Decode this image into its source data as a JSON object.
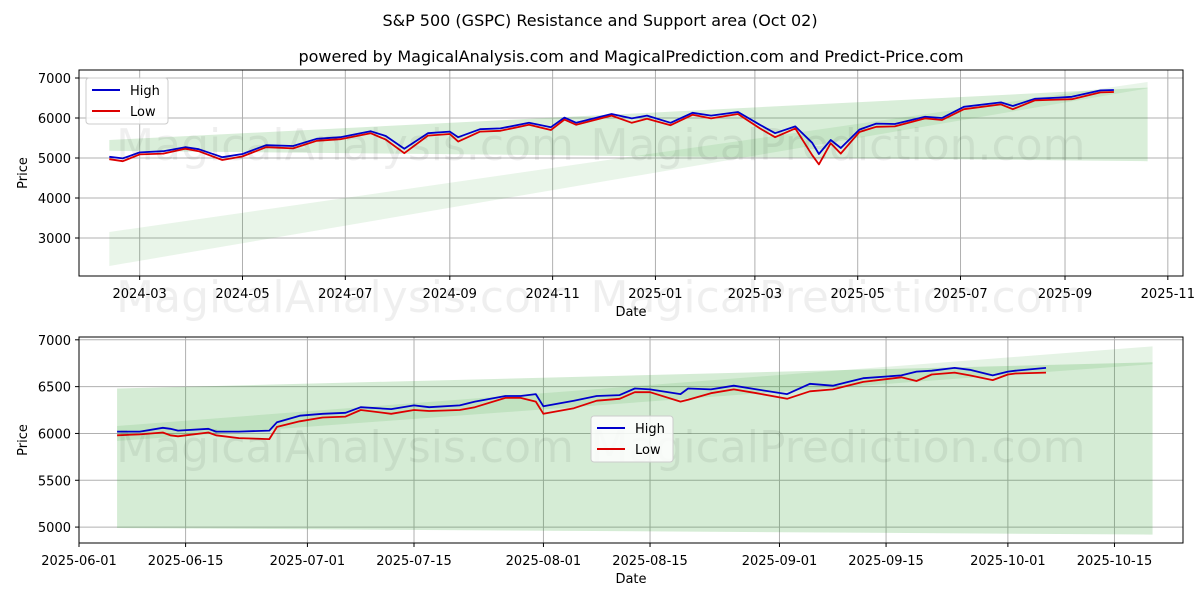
{
  "title": "S&P 500 (GSPC) Resistance and Support area (Oct 02)",
  "subtitle": "powered by MagicalAnalysis.com and MagicalPrediction.com and Predict-Price.com",
  "watermarks": [
    "MagicalAnalysis.com",
    "MagicalPrediction.com"
  ],
  "colors": {
    "high": "#0000cc",
    "low": "#dd0000",
    "band": "#2ca02c"
  },
  "chart_data": [
    {
      "type": "line",
      "title": "",
      "xlabel": "Date",
      "ylabel": "Price",
      "x_range": [
        "2024-01-25",
        "2025-11-10"
      ],
      "ylim": [
        2050,
        7200
      ],
      "yticks": [
        3000,
        4000,
        5000,
        6000,
        7000
      ],
      "xticks": [
        {
          "date": "2024-03-01",
          "label": "2024-03"
        },
        {
          "date": "2024-05-01",
          "label": "2024-05"
        },
        {
          "date": "2024-07-01",
          "label": "2024-07"
        },
        {
          "date": "2024-09-01",
          "label": "2024-09"
        },
        {
          "date": "2024-11-01",
          "label": "2024-11"
        },
        {
          "date": "2025-01-01",
          "label": "2025-01"
        },
        {
          "date": "2025-03-01",
          "label": "2025-03"
        },
        {
          "date": "2025-05-01",
          "label": "2025-05"
        },
        {
          "date": "2025-07-01",
          "label": "2025-07"
        },
        {
          "date": "2025-09-01",
          "label": "2025-09"
        },
        {
          "date": "2025-11-01",
          "label": "2025-11"
        }
      ],
      "grid": true,
      "legend": "top-left",
      "series": [
        {
          "name": "High",
          "points": [
            [
              "2024-02-12",
              5030
            ],
            [
              "2024-02-20",
              4990
            ],
            [
              "2024-03-01",
              5140
            ],
            [
              "2024-03-15",
              5170
            ],
            [
              "2024-03-28",
              5270
            ],
            [
              "2024-04-05",
              5220
            ],
            [
              "2024-04-19",
              5020
            ],
            [
              "2024-05-01",
              5100
            ],
            [
              "2024-05-15",
              5320
            ],
            [
              "2024-05-31",
              5300
            ],
            [
              "2024-06-14",
              5480
            ],
            [
              "2024-06-28",
              5520
            ],
            [
              "2024-07-16",
              5670
            ],
            [
              "2024-07-25",
              5550
            ],
            [
              "2024-08-05",
              5230
            ],
            [
              "2024-08-19",
              5620
            ],
            [
              "2024-09-01",
              5660
            ],
            [
              "2024-09-06",
              5520
            ],
            [
              "2024-09-19",
              5720
            ],
            [
              "2024-10-01",
              5740
            ],
            [
              "2024-10-18",
              5880
            ],
            [
              "2024-10-31",
              5770
            ],
            [
              "2024-11-08",
              6010
            ],
            [
              "2024-11-15",
              5880
            ],
            [
              "2024-12-06",
              6100
            ],
            [
              "2024-12-18",
              5990
            ],
            [
              "2024-12-27",
              6060
            ],
            [
              "2025-01-10",
              5880
            ],
            [
              "2025-01-23",
              6130
            ],
            [
              "2025-02-03",
              6060
            ],
            [
              "2025-02-19",
              6150
            ],
            [
              "2025-03-04",
              5830
            ],
            [
              "2025-03-13",
              5620
            ],
            [
              "2025-03-25",
              5790
            ],
            [
              "2025-04-04",
              5380
            ],
            [
              "2025-04-08",
              5100
            ],
            [
              "2025-04-15",
              5450
            ],
            [
              "2025-04-21",
              5250
            ],
            [
              "2025-05-02",
              5710
            ],
            [
              "2025-05-12",
              5860
            ],
            [
              "2025-05-23",
              5850
            ],
            [
              "2025-06-10",
              6030
            ],
            [
              "2025-06-20",
              6000
            ],
            [
              "2025-07-03",
              6280
            ],
            [
              "2025-07-25",
              6390
            ],
            [
              "2025-08-01",
              6300
            ],
            [
              "2025-08-14",
              6480
            ],
            [
              "2025-08-28",
              6510
            ],
            [
              "2025-09-05",
              6530
            ],
            [
              "2025-09-22",
              6690
            ],
            [
              "2025-09-30",
              6700
            ]
          ]
        },
        {
          "name": "Low",
          "points": [
            [
              "2024-02-12",
              4970
            ],
            [
              "2024-02-20",
              4920
            ],
            [
              "2024-03-01",
              5090
            ],
            [
              "2024-03-15",
              5110
            ],
            [
              "2024-03-28",
              5230
            ],
            [
              "2024-04-05",
              5170
            ],
            [
              "2024-04-19",
              4950
            ],
            [
              "2024-05-01",
              5040
            ],
            [
              "2024-05-15",
              5270
            ],
            [
              "2024-05-31",
              5240
            ],
            [
              "2024-06-14",
              5430
            ],
            [
              "2024-06-28",
              5470
            ],
            [
              "2024-07-16",
              5620
            ],
            [
              "2024-07-25",
              5460
            ],
            [
              "2024-08-05",
              5120
            ],
            [
              "2024-08-19",
              5560
            ],
            [
              "2024-09-01",
              5600
            ],
            [
              "2024-09-06",
              5410
            ],
            [
              "2024-09-19",
              5660
            ],
            [
              "2024-10-01",
              5680
            ],
            [
              "2024-10-18",
              5830
            ],
            [
              "2024-10-31",
              5700
            ],
            [
              "2024-11-08",
              5960
            ],
            [
              "2024-11-15",
              5830
            ],
            [
              "2024-12-06",
              6060
            ],
            [
              "2024-12-18",
              5880
            ],
            [
              "2024-12-27",
              5980
            ],
            [
              "2025-01-10",
              5820
            ],
            [
              "2025-01-23",
              6080
            ],
            [
              "2025-02-03",
              5990
            ],
            [
              "2025-02-19",
              6100
            ],
            [
              "2025-03-04",
              5740
            ],
            [
              "2025-03-13",
              5520
            ],
            [
              "2025-03-25",
              5740
            ],
            [
              "2025-04-04",
              5070
            ],
            [
              "2025-04-08",
              4840
            ],
            [
              "2025-04-15",
              5370
            ],
            [
              "2025-04-21",
              5110
            ],
            [
              "2025-05-02",
              5650
            ],
            [
              "2025-05-12",
              5780
            ],
            [
              "2025-05-23",
              5790
            ],
            [
              "2025-06-10",
              5990
            ],
            [
              "2025-06-20",
              5950
            ],
            [
              "2025-07-03",
              6220
            ],
            [
              "2025-07-25",
              6340
            ],
            [
              "2025-08-01",
              6220
            ],
            [
              "2025-08-14",
              6440
            ],
            [
              "2025-08-28",
              6460
            ],
            [
              "2025-09-05",
              6470
            ],
            [
              "2025-09-22",
              6640
            ],
            [
              "2025-09-30",
              6650
            ]
          ]
        }
      ],
      "bands": [
        {
          "name": "resistance-band",
          "start": "2024-02-12",
          "end": "2025-10-20",
          "lower": [
            5180,
            4920
          ],
          "upper": [
            5450,
            6760
          ],
          "opacity": 0.18
        },
        {
          "name": "support-band",
          "start": "2024-02-12",
          "end": "2025-10-20",
          "lower": [
            2300,
            6740
          ],
          "upper": [
            3150,
            6900
          ],
          "opacity": 0.1
        }
      ]
    },
    {
      "type": "line",
      "title": "",
      "xlabel": "Date",
      "ylabel": "Price",
      "x_range": [
        "2025-06-01",
        "2025-10-24"
      ],
      "ylim": [
        4830,
        7030
      ],
      "yticks": [
        5000,
        5500,
        6000,
        6500,
        7000
      ],
      "xticks": [
        {
          "date": "2025-06-01",
          "label": "2025-06-01"
        },
        {
          "date": "2025-06-15",
          "label": "2025-06-15"
        },
        {
          "date": "2025-07-01",
          "label": "2025-07-01"
        },
        {
          "date": "2025-07-15",
          "label": "2025-07-15"
        },
        {
          "date": "2025-08-01",
          "label": "2025-08-01"
        },
        {
          "date": "2025-08-15",
          "label": "2025-08-15"
        },
        {
          "date": "2025-09-01",
          "label": "2025-09-01"
        },
        {
          "date": "2025-09-15",
          "label": "2025-09-15"
        },
        {
          "date": "2025-10-01",
          "label": "2025-10-01"
        },
        {
          "date": "2025-10-15",
          "label": "2025-10-15"
        }
      ],
      "grid": true,
      "legend": "center",
      "series": [
        {
          "name": "High",
          "points": [
            [
              "2025-06-06",
              6020
            ],
            [
              "2025-06-09",
              6020
            ],
            [
              "2025-06-12",
              6060
            ],
            [
              "2025-06-13",
              6050
            ],
            [
              "2025-06-14",
              6030
            ],
            [
              "2025-06-18",
              6050
            ],
            [
              "2025-06-19",
              6020
            ],
            [
              "2025-06-22",
              6020
            ],
            [
              "2025-06-26",
              6030
            ],
            [
              "2025-06-27",
              6120
            ],
            [
              "2025-06-30",
              6190
            ],
            [
              "2025-07-03",
              6210
            ],
            [
              "2025-07-06",
              6220
            ],
            [
              "2025-07-08",
              6280
            ],
            [
              "2025-07-12",
              6260
            ],
            [
              "2025-07-15",
              6300
            ],
            [
              "2025-07-17",
              6280
            ],
            [
              "2025-07-21",
              6300
            ],
            [
              "2025-07-23",
              6340
            ],
            [
              "2025-07-27",
              6400
            ],
            [
              "2025-07-29",
              6400
            ],
            [
              "2025-07-31",
              6420
            ],
            [
              "2025-08-01",
              6290
            ],
            [
              "2025-08-05",
              6350
            ],
            [
              "2025-08-08",
              6400
            ],
            [
              "2025-08-11",
              6410
            ],
            [
              "2025-08-13",
              6480
            ],
            [
              "2025-08-15",
              6470
            ],
            [
              "2025-08-19",
              6420
            ],
            [
              "2025-08-20",
              6480
            ],
            [
              "2025-08-23",
              6470
            ],
            [
              "2025-08-26",
              6510
            ],
            [
              "2025-08-29",
              6470
            ],
            [
              "2025-09-02",
              6420
            ],
            [
              "2025-09-05",
              6530
            ],
            [
              "2025-09-08",
              6510
            ],
            [
              "2025-09-12",
              6590
            ],
            [
              "2025-09-17",
              6620
            ],
            [
              "2025-09-19",
              6660
            ],
            [
              "2025-09-21",
              6670
            ],
            [
              "2025-09-24",
              6700
            ],
            [
              "2025-09-26",
              6680
            ],
            [
              "2025-09-29",
              6620
            ],
            [
              "2025-10-01",
              6660
            ],
            [
              "2025-10-02",
              6670
            ],
            [
              "2025-10-06",
              6700
            ]
          ]
        },
        {
          "name": "Low",
          "points": [
            [
              "2025-06-06",
              5980
            ],
            [
              "2025-06-09",
              5990
            ],
            [
              "2025-06-12",
              6010
            ],
            [
              "2025-06-13",
              5980
            ],
            [
              "2025-06-14",
              5970
            ],
            [
              "2025-06-18",
              6010
            ],
            [
              "2025-06-19",
              5980
            ],
            [
              "2025-06-22",
              5950
            ],
            [
              "2025-06-26",
              5940
            ],
            [
              "2025-06-27",
              6070
            ],
            [
              "2025-06-30",
              6130
            ],
            [
              "2025-07-03",
              6170
            ],
            [
              "2025-07-06",
              6180
            ],
            [
              "2025-07-08",
              6250
            ],
            [
              "2025-07-12",
              6210
            ],
            [
              "2025-07-15",
              6250
            ],
            [
              "2025-07-17",
              6240
            ],
            [
              "2025-07-21",
              6250
            ],
            [
              "2025-07-23",
              6280
            ],
            [
              "2025-07-27",
              6380
            ],
            [
              "2025-07-29",
              6380
            ],
            [
              "2025-07-31",
              6340
            ],
            [
              "2025-08-01",
              6210
            ],
            [
              "2025-08-05",
              6270
            ],
            [
              "2025-08-08",
              6350
            ],
            [
              "2025-08-11",
              6370
            ],
            [
              "2025-08-13",
              6440
            ],
            [
              "2025-08-15",
              6440
            ],
            [
              "2025-08-19",
              6340
            ],
            [
              "2025-08-20",
              6360
            ],
            [
              "2025-08-23",
              6430
            ],
            [
              "2025-08-26",
              6470
            ],
            [
              "2025-08-29",
              6430
            ],
            [
              "2025-09-02",
              6370
            ],
            [
              "2025-09-05",
              6450
            ],
            [
              "2025-09-08",
              6470
            ],
            [
              "2025-09-12",
              6550
            ],
            [
              "2025-09-17",
              6600
            ],
            [
              "2025-09-19",
              6560
            ],
            [
              "2025-09-21",
              6630
            ],
            [
              "2025-09-24",
              6650
            ],
            [
              "2025-09-26",
              6620
            ],
            [
              "2025-09-29",
              6570
            ],
            [
              "2025-10-01",
              6630
            ],
            [
              "2025-10-02",
              6640
            ],
            [
              "2025-10-06",
              6650
            ]
          ]
        }
      ],
      "bands": [
        {
          "name": "resistance-band",
          "start": "2025-06-06",
          "end": "2025-10-20",
          "lower": [
            4990,
            4920
          ],
          "upper": [
            6480,
            6760
          ],
          "opacity": 0.2
        },
        {
          "name": "support-band",
          "start": "2025-06-06",
          "end": "2025-10-20",
          "lower": [
            5920,
            6740
          ],
          "upper": [
            6080,
            6930
          ],
          "opacity": 0.12
        }
      ]
    }
  ]
}
